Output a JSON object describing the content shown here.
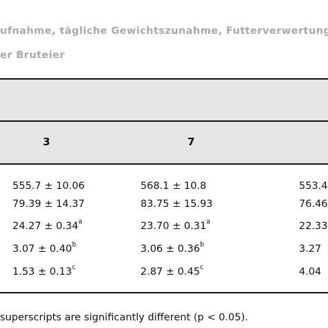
{
  "caption": {
    "line1": "ufnahme, tägliche Gewichtszunahme, Futterverwertung u",
    "line2": "er Bruteier"
  },
  "table": {
    "headers": [
      "3",
      "7"
    ],
    "rows": [
      {
        "c1": "555.7 ± 10.06",
        "c1_sup": "",
        "c2": "568.1 ± 10.8",
        "c2_sup": "",
        "c3": "553.4"
      },
      {
        "c1": "79.39 ± 14.37",
        "c1_sup": "",
        "c2": "83.75 ± 15.93",
        "c2_sup": "",
        "c3": "76.46"
      },
      {
        "c1": "24.27 ± 0.34",
        "c1_sup": "a",
        "c2": "23.70 ± 0.31",
        "c2_sup": "a",
        "c3": "22.33"
      },
      {
        "c1": "3.07 ± 0.40",
        "c1_sup": "b",
        "c2": "3.06 ± 0.36",
        "c2_sup": "b",
        "c3": "3.27"
      },
      {
        "c1": "1.53 ± 0.13",
        "c1_sup": "c",
        "c2": "2.87 ± 0.45",
        "c2_sup": "c",
        "c3": "4.04"
      }
    ]
  },
  "footnote": "superscripts are significantly different (p < 0.05)."
}
